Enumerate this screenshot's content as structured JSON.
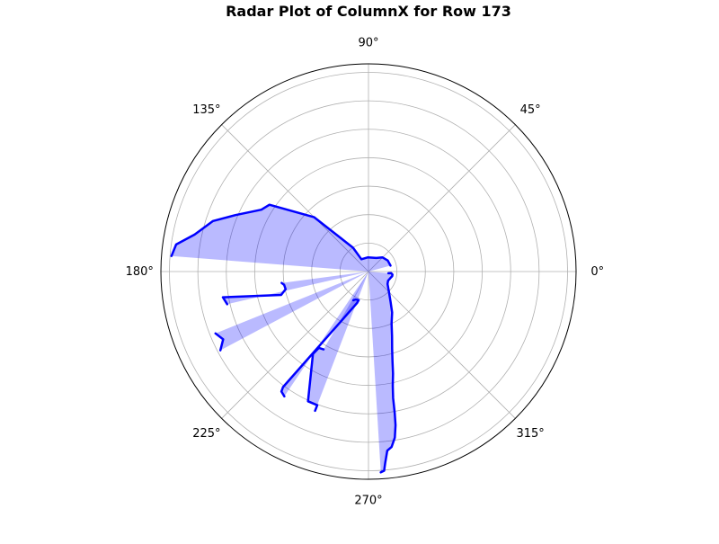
{
  "chart_data": {
    "type": "radar",
    "title": "Radar Plot of ColumnX for Row 173",
    "angle_unit": "degrees",
    "theta_tick_labels": [
      {
        "angle": 0,
        "label": "0°"
      },
      {
        "angle": 45,
        "label": "45°"
      },
      {
        "angle": 90,
        "label": "90°"
      },
      {
        "angle": 135,
        "label": "135°"
      },
      {
        "angle": 180,
        "label": "180°"
      },
      {
        "angle": 225,
        "label": "225°"
      },
      {
        "angle": 270,
        "label": "270°"
      },
      {
        "angle": 315,
        "label": "315°"
      }
    ],
    "radial_gridlines": [
      1,
      2,
      3,
      4,
      5,
      6,
      7
    ],
    "r_max": 7.3,
    "radial_tick_labels_shown": false,
    "grid": true,
    "line_color": "#0000ff",
    "fill_color": "#0000ff",
    "fill_opacity": 0.27,
    "segments": [
      {
        "points": [
          {
            "theta": 355,
            "r": 0.7
          },
          {
            "theta": 356,
            "r": 0.8
          },
          {
            "theta": 353,
            "r": 0.85
          },
          {
            "theta": 349,
            "r": 0.85
          },
          {
            "theta": 343,
            "r": 0.8
          },
          {
            "theta": 335,
            "r": 0.76
          },
          {
            "theta": 327,
            "r": 0.8
          },
          {
            "theta": 315,
            "r": 1.02
          },
          {
            "theta": 306,
            "r": 1.32
          },
          {
            "theta": 300,
            "r": 1.66
          },
          {
            "theta": 294,
            "r": 2.0
          },
          {
            "theta": 290,
            "r": 2.42
          },
          {
            "theta": 287,
            "r": 2.84
          },
          {
            "theta": 285,
            "r": 3.26
          },
          {
            "theta": 283.5,
            "r": 3.69
          },
          {
            "theta": 282,
            "r": 4.11
          },
          {
            "theta": 281,
            "r": 4.53
          },
          {
            "theta": 280.5,
            "r": 5.06
          },
          {
            "theta": 280,
            "r": 5.48
          },
          {
            "theta": 279,
            "r": 5.91
          },
          {
            "theta": 277.5,
            "r": 6.22
          },
          {
            "theta": 276,
            "r": 6.33
          },
          {
            "theta": 275,
            "r": 6.75
          },
          {
            "theta": 274.5,
            "r": 7.02
          },
          {
            "theta": 273.5,
            "r": 7.07
          }
        ]
      },
      {
        "points": [
          {
            "theta": 236,
            "r": 5.29
          },
          {
            "theta": 234,
            "r": 5.21
          },
          {
            "theta": 233.5,
            "r": 5.05
          },
          {
            "theta": 250,
            "r": 1.18
          },
          {
            "theta": 251,
            "r": 1.06
          },
          {
            "theta": 245,
            "r": 1.08
          },
          {
            "theta": 242,
            "r": 1.14
          }
        ]
      },
      {
        "points": [
          {
            "theta": 249,
            "r": 5.24
          },
          {
            "theta": 249,
            "r": 5.03
          },
          {
            "theta": 245,
            "r": 5.03
          },
          {
            "theta": 236,
            "r": 3.49
          },
          {
            "theta": 237,
            "r": 3.2
          },
          {
            "theta": 240,
            "r": 3.16
          }
        ]
      },
      {
        "points": [
          {
            "theta": 208,
            "r": 5.9
          },
          {
            "theta": 205,
            "r": 5.64
          },
          {
            "theta": 202,
            "r": 5.8
          }
        ]
      },
      {
        "points": [
          {
            "theta": 193,
            "r": 5.1
          },
          {
            "theta": 190,
            "r": 5.2
          },
          {
            "theta": 195,
            "r": 3.18
          },
          {
            "theta": 192,
            "r": 2.98
          },
          {
            "theta": 189,
            "r": 3.0
          },
          {
            "theta": 187.5,
            "r": 3.08
          }
        ]
      },
      {
        "points": [
          {
            "theta": 175.5,
            "r": 6.95
          },
          {
            "theta": 172,
            "r": 6.83
          },
          {
            "theta": 168,
            "r": 6.25
          },
          {
            "theta": 162,
            "r": 5.75
          },
          {
            "theta": 157,
            "r": 5.08
          },
          {
            "theta": 150,
            "r": 4.35
          },
          {
            "theta": 146,
            "r": 4.2
          },
          {
            "theta": 135,
            "r": 2.7
          },
          {
            "theta": 123,
            "r": 1.0
          },
          {
            "theta": 120,
            "r": 0.5
          },
          {
            "theta": 92,
            "r": 0.5
          },
          {
            "theta": 60,
            "r": 0.55
          },
          {
            "theta": 45,
            "r": 0.7
          },
          {
            "theta": 30,
            "r": 0.78
          },
          {
            "theta": 15,
            "r": 0.8
          }
        ]
      }
    ]
  }
}
